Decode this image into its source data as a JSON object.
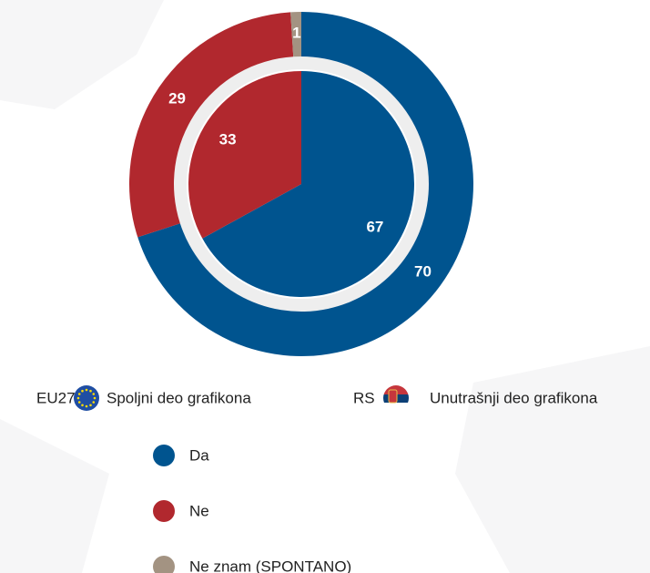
{
  "chart_data": {
    "type": "donut",
    "categories": [
      "Da",
      "Ne",
      "Ne znam (SPONTANO)"
    ],
    "colors": [
      "#00548f",
      "#b1282e",
      "#a39382"
    ],
    "series": [
      {
        "name": "EU27",
        "label": "Spoljni deo grafikona",
        "values": [
          70,
          29,
          1
        ]
      },
      {
        "name": "RS",
        "label": "Unutrašnji deo grafikona",
        "values": [
          67,
          33,
          0
        ]
      }
    ]
  }
}
